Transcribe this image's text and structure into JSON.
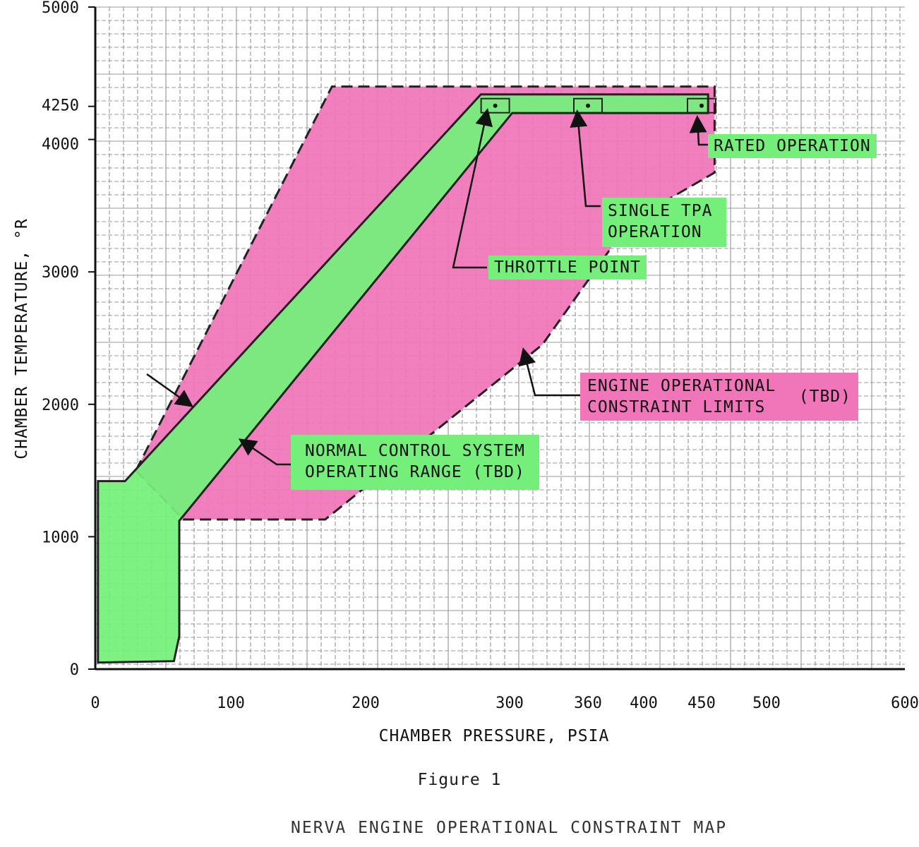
{
  "chart_data": {
    "type": "area",
    "xlabel": "CHAMBER PRESSURE, PSIA",
    "ylabel": "CHAMBER TEMPERATURE, °R",
    "x_ticks": [
      0,
      100,
      200,
      300,
      360,
      400,
      450,
      500,
      600
    ],
    "y_ticks": [
      0,
      1000,
      2000,
      3000,
      4000,
      4250,
      5000
    ],
    "xlim": [
      0,
      600
    ],
    "ylim": [
      0,
      5000
    ],
    "grid": true,
    "regions": [
      {
        "label": "ENGINE OPERATIONAL CONSTRAINT LIMITS (TBD)",
        "color": "#f075b9",
        "boundary": [
          {
            "x": 30,
            "y": 1500
          },
          {
            "x": 175,
            "y": 4400
          },
          {
            "x": 460,
            "y": 4400
          },
          {
            "x": 460,
            "y": 3750
          },
          {
            "x": 390,
            "y": 3380
          },
          {
            "x": 325,
            "y": 2450
          },
          {
            "x": 170,
            "y": 1130
          },
          {
            "x": 65,
            "y": 1130
          }
        ]
      },
      {
        "label": "NORMAL CONTROL SYSTEM OPERATING RANGE (TBD)",
        "color": "#74f07a",
        "boundary": [
          {
            "x": 2,
            "y": 50
          },
          {
            "x": 2,
            "y": 1420
          },
          {
            "x": 22,
            "y": 1420
          },
          {
            "x": 280,
            "y": 4340
          },
          {
            "x": 455,
            "y": 4340
          },
          {
            "x": 455,
            "y": 4200
          },
          {
            "x": 302,
            "y": 4200
          },
          {
            "x": 62,
            "y": 1120
          },
          {
            "x": 62,
            "y": 250
          },
          {
            "x": 58,
            "y": 60
          }
        ]
      }
    ],
    "points": [
      {
        "label": "THROTTLE POINT",
        "x": 290,
        "y": 4250
      },
      {
        "label": "SINGLE TPA OPERATION",
        "x": 360,
        "y": 4250
      },
      {
        "label": "RATED OPERATION",
        "x": 450,
        "y": 4250
      }
    ]
  },
  "labels": {
    "rated_operation": "RATED OPERATION",
    "single_tpa_line1": "SINGLE TPA",
    "single_tpa_line2": "OPERATION",
    "throttle_point": "THROTTLE POINT",
    "engine_limits_line1": "ENGINE OPERATIONAL",
    "engine_limits_line2": "CONSTRAINT LIMITS",
    "engine_limits_tbd": "(TBD)",
    "normal_range_line1": "NORMAL CONTROL SYSTEM",
    "normal_range_line2": "OPERATING RANGE (TBD)"
  },
  "figure": {
    "number": "Figure 1",
    "title": "NERVA ENGINE OPERATIONAL CONSTRAINT MAP"
  },
  "colors": {
    "green": "#74f07a",
    "pink": "#f075b9"
  }
}
